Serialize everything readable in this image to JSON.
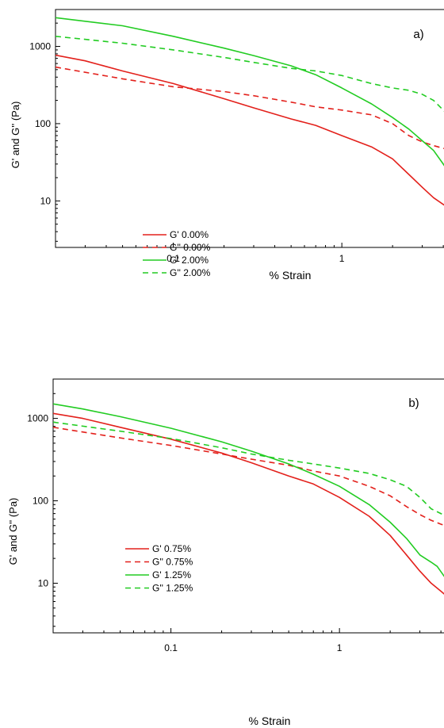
{
  "chart_data": [
    {
      "type": "line",
      "panel_label": "a)",
      "xlabel": "% Strain",
      "ylabel": "G' and G'' (Pa)",
      "x_scale": "log",
      "y_scale": "log",
      "xlim": [
        0.02,
        4.5
      ],
      "ylim": [
        2.5,
        3000
      ],
      "x_ticks": [
        {
          "value": 0.1,
          "label": "0.1"
        },
        {
          "value": 1,
          "label": "1"
        }
      ],
      "y_ticks": [
        {
          "value": 10,
          "label": "10"
        },
        {
          "value": 100,
          "label": "100"
        },
        {
          "value": 1000,
          "label": "1000"
        }
      ],
      "legend_position": "bottom-left",
      "series": [
        {
          "name": "G' 0.00%",
          "color": "#e3201b",
          "dash": "solid",
          "x": [
            0.02,
            0.03,
            0.05,
            0.1,
            0.2,
            0.3,
            0.5,
            0.7,
            1.0,
            1.5,
            2.0,
            2.5,
            3.0,
            3.5,
            4.0,
            4.5
          ],
          "y": [
            770,
            650,
            480,
            330,
            210,
            160,
            115,
            95,
            70,
            50,
            35,
            22,
            15,
            11,
            9,
            7.5
          ]
        },
        {
          "name": "G'' 0.00%",
          "color": "#e3201b",
          "dash": "dashed",
          "x": [
            0.02,
            0.05,
            0.1,
            0.2,
            0.3,
            0.5,
            0.7,
            1.0,
            1.5,
            2.0,
            2.5,
            3.0,
            3.5,
            4.0,
            4.5
          ],
          "y": [
            540,
            380,
            300,
            260,
            230,
            190,
            165,
            150,
            130,
            100,
            70,
            58,
            52,
            48,
            45
          ]
        },
        {
          "name": "G' 2.00%",
          "color": "#22cc22",
          "dash": "solid",
          "x": [
            0.02,
            0.05,
            0.1,
            0.2,
            0.3,
            0.5,
            0.7,
            1.0,
            1.5,
            2.0,
            2.5,
            3.0,
            3.5,
            4.0,
            4.5
          ],
          "y": [
            2350,
            1850,
            1350,
            950,
            760,
            560,
            430,
            290,
            180,
            120,
            85,
            60,
            45,
            30,
            20
          ]
        },
        {
          "name": "G'' 2.00%",
          "color": "#22cc22",
          "dash": "dashed",
          "x": [
            0.02,
            0.05,
            0.1,
            0.2,
            0.3,
            0.5,
            0.7,
            1.0,
            1.5,
            2.0,
            2.5,
            3.0,
            3.5,
            4.0,
            4.5
          ],
          "y": [
            1350,
            1100,
            900,
            720,
            620,
            520,
            480,
            420,
            330,
            290,
            270,
            240,
            200,
            150,
            110
          ]
        }
      ]
    },
    {
      "type": "line",
      "panel_label": "b)",
      "xlabel": "% Strain",
      "ylabel": "G' and G'' (Pa)",
      "x_scale": "log",
      "y_scale": "log",
      "xlim": [
        0.02,
        4.5
      ],
      "ylim": [
        2.5,
        3000
      ],
      "x_ticks": [
        {
          "value": 0.1,
          "label": "0.1"
        },
        {
          "value": 1,
          "label": "1"
        }
      ],
      "y_ticks": [
        {
          "value": 10,
          "label": "10"
        },
        {
          "value": 100,
          "label": "100"
        },
        {
          "value": 1000,
          "label": "1000"
        }
      ],
      "legend_position": "bottom-left",
      "series": [
        {
          "name": "G' 0.75%",
          "color": "#e3201b",
          "dash": "solid",
          "x": [
            0.02,
            0.03,
            0.05,
            0.1,
            0.2,
            0.3,
            0.5,
            0.7,
            1.0,
            1.5,
            2.0,
            2.5,
            3.0,
            3.5,
            4.0,
            4.5
          ],
          "y": [
            1150,
            1000,
            780,
            560,
            380,
            290,
            200,
            160,
            110,
            65,
            38,
            22,
            14,
            10,
            8,
            6.5
          ]
        },
        {
          "name": "G'' 0.75%",
          "color": "#e3201b",
          "dash": "dashed",
          "x": [
            0.02,
            0.05,
            0.1,
            0.2,
            0.3,
            0.5,
            0.7,
            1.0,
            1.5,
            2.0,
            2.5,
            3.0,
            3.5,
            4.0,
            4.5
          ],
          "y": [
            780,
            580,
            470,
            370,
            320,
            270,
            230,
            200,
            150,
            115,
            85,
            68,
            58,
            52,
            48
          ]
        },
        {
          "name": "G' 1.25%",
          "color": "#22cc22",
          "dash": "solid",
          "x": [
            0.02,
            0.03,
            0.05,
            0.1,
            0.2,
            0.3,
            0.5,
            0.7,
            1.0,
            1.5,
            2.0,
            2.5,
            3.0,
            3.5,
            3.8,
            4.2,
            4.5
          ],
          "y": [
            1500,
            1300,
            1050,
            760,
            520,
            400,
            280,
            210,
            150,
            90,
            55,
            35,
            22,
            18,
            16,
            12,
            7.5
          ]
        },
        {
          "name": "G'' 1.25%",
          "color": "#22cc22",
          "dash": "dashed",
          "x": [
            0.02,
            0.05,
            0.1,
            0.2,
            0.3,
            0.5,
            0.7,
            1.0,
            1.5,
            2.0,
            2.5,
            3.0,
            3.5,
            4.0,
            4.5
          ],
          "y": [
            900,
            700,
            570,
            440,
            370,
            310,
            280,
            250,
            215,
            180,
            150,
            110,
            80,
            70,
            60
          ]
        }
      ]
    }
  ]
}
